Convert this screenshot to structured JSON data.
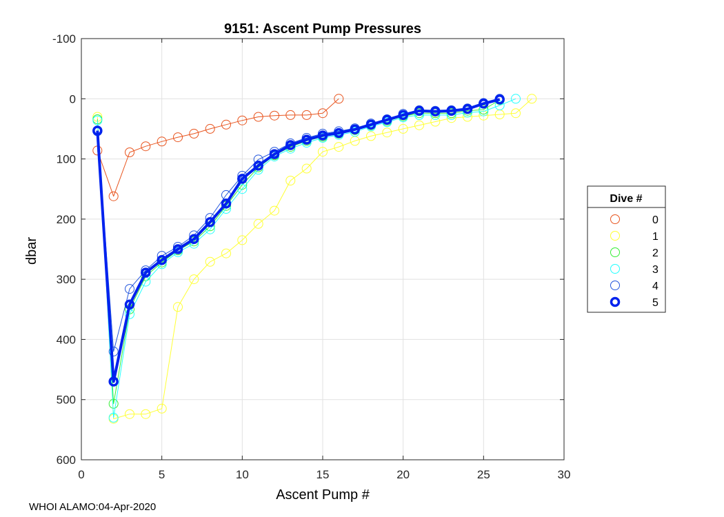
{
  "footer_text": "WHOI ALAMO:04-Apr-2020",
  "chart_data": {
    "type": "line",
    "title": "9151: Ascent Pump Pressures",
    "xlabel": "Ascent Pump #",
    "ylabel": "dbar",
    "xlim": [
      0,
      30
    ],
    "ylim": [
      -100,
      600
    ],
    "y_reversed": true,
    "xticks": [
      0,
      5,
      10,
      15,
      20,
      25,
      30
    ],
    "yticks": [
      -100,
      0,
      100,
      200,
      300,
      400,
      500,
      600
    ],
    "grid": true,
    "legend_title": "Dive #",
    "legend_position": "outside-right",
    "series": [
      {
        "name": "0",
        "color": "#e8541e",
        "linewidth": 1,
        "marker": "open-circle",
        "x": [
          1,
          2,
          3,
          4,
          5,
          6,
          7,
          8,
          9,
          10,
          11,
          12,
          13,
          14,
          15,
          16
        ],
        "y": [
          86,
          162,
          89,
          79,
          71,
          64,
          58,
          50,
          43,
          36,
          30,
          28,
          27,
          27,
          24,
          0
        ]
      },
      {
        "name": "1",
        "color": "#ffff33",
        "linewidth": 1,
        "marker": "open-circle",
        "x": [
          1,
          2,
          3,
          4,
          5,
          6,
          7,
          8,
          9,
          10,
          11,
          12,
          13,
          14,
          15,
          16,
          17,
          18,
          19,
          20,
          21,
          22,
          23,
          24,
          25,
          26,
          27,
          28
        ],
        "y": [
          30,
          532,
          524,
          524,
          515,
          346,
          300,
          271,
          257,
          235,
          208,
          186,
          136,
          116,
          88,
          80,
          70,
          62,
          56,
          50,
          44,
          38,
          32,
          30,
          28,
          26,
          24,
          0
        ]
      },
      {
        "name": "2",
        "color": "#33ee33",
        "linewidth": 1,
        "marker": "open-circle",
        "x": [
          1,
          2,
          3,
          4,
          5,
          6,
          7,
          8,
          9,
          10,
          11,
          12,
          13,
          14,
          15,
          16,
          17,
          18,
          19,
          20,
          21,
          22,
          23,
          24,
          25,
          26
        ],
        "y": [
          34,
          507,
          350,
          295,
          272,
          252,
          237,
          212,
          178,
          143,
          114,
          94,
          80,
          70,
          63,
          58,
          52,
          44,
          37,
          29,
          24,
          24,
          24,
          20,
          18,
          2
        ]
      },
      {
        "name": "3",
        "color": "#22ffff",
        "linewidth": 1,
        "marker": "open-circle",
        "x": [
          1,
          2,
          3,
          4,
          5,
          6,
          7,
          8,
          9,
          10,
          11,
          12,
          13,
          14,
          15,
          16,
          17,
          18,
          19,
          20,
          21,
          22,
          23,
          24,
          25,
          26,
          27
        ],
        "y": [
          36,
          530,
          358,
          304,
          275,
          255,
          241,
          217,
          183,
          150,
          118,
          96,
          83,
          73,
          65,
          60,
          55,
          46,
          39,
          31,
          27,
          27,
          27,
          23,
          21,
          11,
          0
        ]
      },
      {
        "name": "4",
        "color": "#2255dd",
        "linewidth": 1,
        "marker": "open-circle",
        "x": [
          1,
          2,
          3,
          4,
          5,
          6,
          7,
          8,
          9,
          10,
          11,
          12,
          13,
          14,
          15,
          16,
          17,
          18,
          19,
          20,
          21,
          22,
          23,
          24,
          25,
          26
        ],
        "y": [
          54,
          420,
          316,
          285,
          261,
          246,
          227,
          198,
          160,
          128,
          101,
          88,
          74,
          65,
          58,
          54,
          49,
          41,
          34,
          25,
          19,
          20,
          19,
          16,
          7,
          0
        ]
      },
      {
        "name": "5",
        "color": "#0022ee",
        "linewidth": 4,
        "marker": "open-circle-thick",
        "x": [
          1,
          2,
          3,
          4,
          5,
          6,
          7,
          8,
          9,
          10,
          11,
          12,
          13,
          14,
          15,
          16,
          17,
          18,
          19,
          20,
          21,
          22,
          23,
          24,
          25,
          26
        ],
        "y": [
          53,
          470,
          342,
          289,
          268,
          250,
          233,
          205,
          174,
          133,
          111,
          92,
          77,
          68,
          61,
          57,
          51,
          43,
          35,
          27,
          20,
          21,
          20,
          17,
          8,
          1
        ]
      }
    ]
  }
}
